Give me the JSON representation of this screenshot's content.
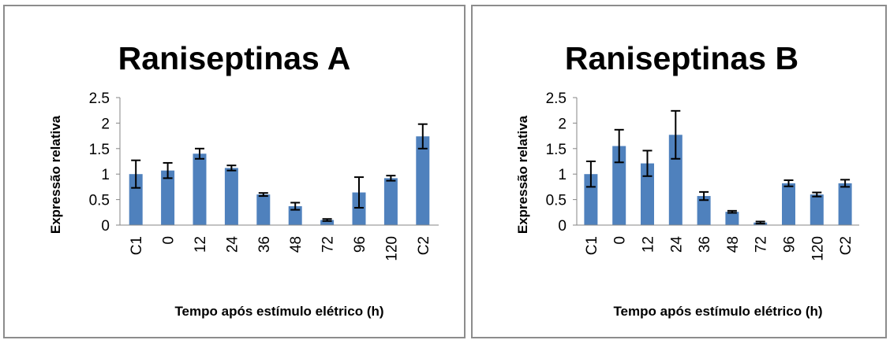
{
  "chart_data": [
    {
      "type": "bar",
      "title": "Raniseptinas A",
      "xlabel": "Tempo após estímulo elétrico (h)",
      "ylabel": "Expressão relativa",
      "categories": [
        "C1",
        "0",
        "12",
        "24",
        "36",
        "48",
        "72",
        "96",
        "120",
        "C2"
      ],
      "values": [
        1.0,
        1.07,
        1.4,
        1.12,
        0.6,
        0.37,
        0.1,
        0.64,
        0.92,
        1.74
      ],
      "errors": [
        0.27,
        0.15,
        0.1,
        0.05,
        0.03,
        0.07,
        0.02,
        0.3,
        0.05,
        0.24
      ],
      "yticks": [
        "0",
        "0.5",
        "1",
        "1.5",
        "2",
        "2.5"
      ],
      "ylim": [
        0,
        2.5
      ],
      "grid": false,
      "bar_color": "#4f81bd",
      "error_bar_color": "#000000"
    },
    {
      "type": "bar",
      "title": "Raniseptinas B",
      "xlabel": "Tempo após estímulo elétrico (h)",
      "ylabel": "Expressão relativa",
      "categories": [
        "C1",
        "0",
        "12",
        "24",
        "36",
        "48",
        "72",
        "96",
        "120",
        "C2"
      ],
      "values": [
        1.0,
        1.55,
        1.21,
        1.77,
        0.57,
        0.26,
        0.05,
        0.82,
        0.6,
        0.82
      ],
      "errors": [
        0.25,
        0.32,
        0.25,
        0.47,
        0.08,
        0.02,
        0.02,
        0.06,
        0.04,
        0.07
      ],
      "yticks": [
        "0",
        "0.5",
        "1",
        "1.5",
        "2",
        "2.5"
      ],
      "ylim": [
        0,
        2.5
      ],
      "grid": false,
      "bar_color": "#4f81bd",
      "error_bar_color": "#000000"
    }
  ]
}
